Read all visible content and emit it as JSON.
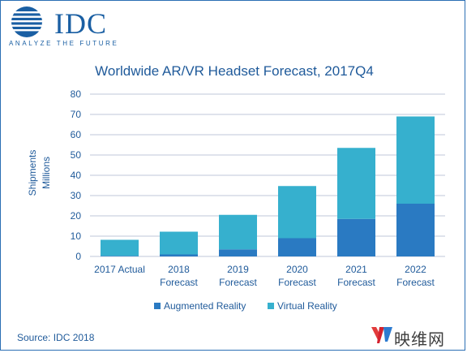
{
  "brand": {
    "logo_text": "IDC",
    "tagline": "ANALYZE THE FUTURE"
  },
  "watermark": {
    "text": "映维网"
  },
  "source": "Source: IDC 2018",
  "colors": {
    "augmented": "#2a7ac2",
    "virtual": "#36b0ce",
    "grid": "#bfc7d8",
    "text": "#1f5a9a",
    "logo": "#1a5fa3"
  },
  "chart_data": {
    "type": "bar",
    "stacked": true,
    "title": "Worldwide AR/VR Headset Forecast, 2017Q4",
    "ylabel": [
      "Shipments",
      "Millions"
    ],
    "xlabel": "",
    "ylim": [
      0,
      80
    ],
    "yticks": [
      0,
      10,
      20,
      30,
      40,
      50,
      60,
      70,
      80
    ],
    "grid": true,
    "legend_position": "bottom",
    "categories": [
      [
        "2017 Actual"
      ],
      [
        "2018",
        "Forecast"
      ],
      [
        "2019",
        "Forecast"
      ],
      [
        "2020",
        "Forecast"
      ],
      [
        "2021",
        "Forecast"
      ],
      [
        "2022",
        "Forecast"
      ]
    ],
    "series": [
      {
        "name": "Augmented Reality",
        "color": "#2a7ac2",
        "values": [
          0.3,
          1.0,
          3.5,
          9.0,
          18.5,
          26.0
        ]
      },
      {
        "name": "Virtual Reality",
        "color": "#36b0ce",
        "values": [
          7.9,
          11.2,
          17.0,
          25.7,
          35.0,
          43.0
        ]
      }
    ]
  }
}
